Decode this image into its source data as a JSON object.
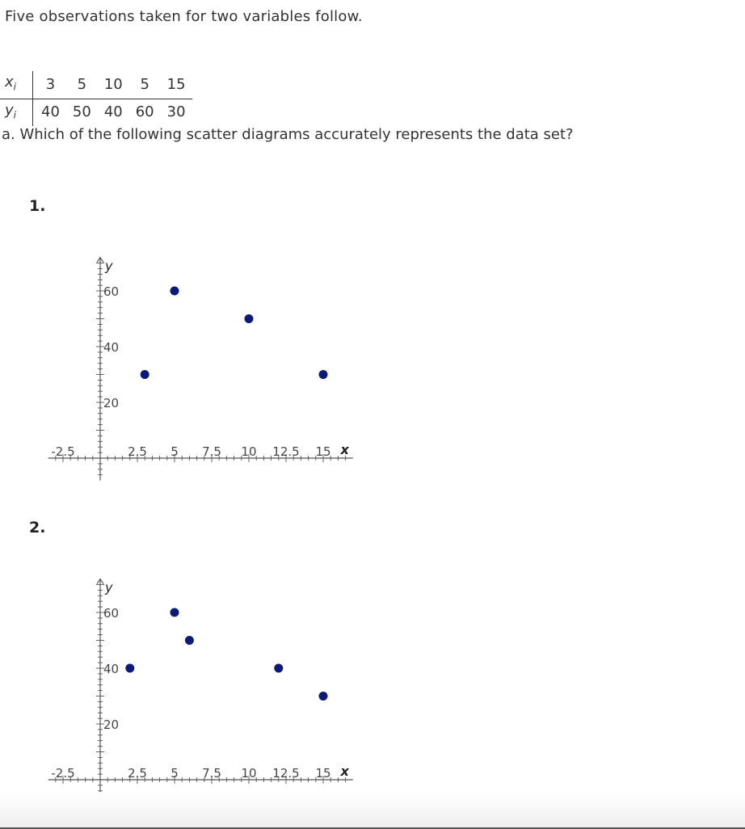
{
  "intro": "Five observations taken for two variables follow.",
  "table": {
    "x_label": "x",
    "x_sub": "i",
    "y_label": "y",
    "y_sub": "i",
    "x_values": [
      "3",
      "5",
      "10",
      "5",
      "15"
    ],
    "y_values": [
      "40",
      "50",
      "40",
      "60",
      "30"
    ]
  },
  "question": "a. Which of the following scatter diagrams accurately represents the data set?",
  "options": [
    {
      "label": "1."
    },
    {
      "label": "2."
    }
  ],
  "colors": {
    "point": "#0b1a7a",
    "axis": "#555555"
  },
  "chart_data": [
    {
      "type": "scatter",
      "xlabel": "x",
      "ylabel": "y",
      "x_ticks": [
        "-2.5",
        "2.5",
        "5",
        "7.5",
        "10",
        "12.5",
        "15"
      ],
      "y_ticks": [
        "20",
        "40",
        "60"
      ],
      "xlim": [
        -3.5,
        17
      ],
      "ylim": [
        -8,
        72
      ],
      "points": [
        {
          "x": 3,
          "y": 30
        },
        {
          "x": 5,
          "y": 60
        },
        {
          "x": 10,
          "y": 50
        },
        {
          "x": 15,
          "y": 30
        }
      ]
    },
    {
      "type": "scatter",
      "xlabel": "x",
      "ylabel": "y",
      "x_ticks": [
        "-2.5",
        "2.5",
        "5",
        "7.5",
        "10",
        "12.5",
        "15"
      ],
      "y_ticks": [
        "20",
        "40",
        "60"
      ],
      "xlim": [
        -3.5,
        17
      ],
      "ylim": [
        -8,
        72
      ],
      "points": [
        {
          "x": 2,
          "y": 40
        },
        {
          "x": 5,
          "y": 60
        },
        {
          "x": 6,
          "y": 50
        },
        {
          "x": 12,
          "y": 40
        },
        {
          "x": 15,
          "y": 30
        }
      ]
    }
  ]
}
